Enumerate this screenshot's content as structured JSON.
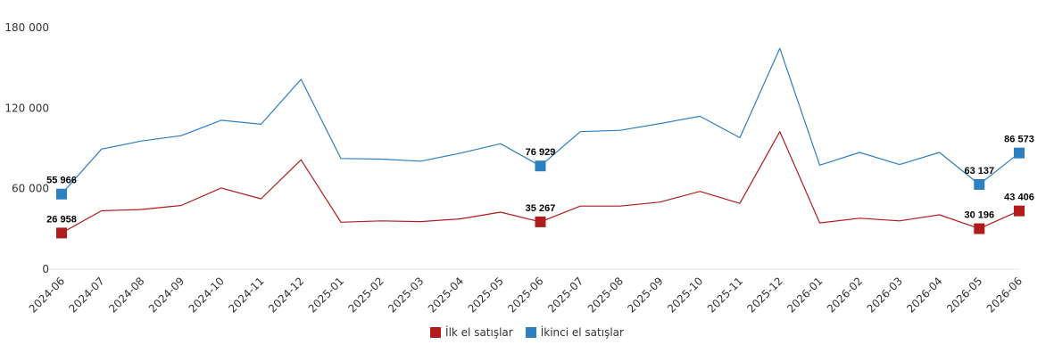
{
  "chart_data": {
    "type": "line",
    "categories": [
      "2024-06",
      "2024-07",
      "2024-08",
      "2024-09",
      "2024-10",
      "2024-11",
      "2024-12",
      "2025-01",
      "2025-02",
      "2025-03",
      "2025-04",
      "2025-05",
      "2025-06",
      "2025-07",
      "2025-08",
      "2025-09",
      "2025-10",
      "2025-11",
      "2025-12",
      "2026-01",
      "2026-02",
      "2026-03",
      "2026-04",
      "2026-05",
      "2026-06"
    ],
    "series": [
      {
        "name": "İlk el satışlar",
        "color": "#b01c1c",
        "values": [
          26958,
          43500,
          44500,
          47500,
          60500,
          52500,
          81500,
          35000,
          36000,
          35500,
          37500,
          42500,
          35267,
          47000,
          47000,
          50000,
          58000,
          49000,
          102500,
          34500,
          38000,
          36000,
          40500,
          30196,
          43406
        ]
      },
      {
        "name": "İkinci el satışlar",
        "color": "#2e7fc2",
        "values": [
          55966,
          89500,
          95500,
          99500,
          111000,
          108000,
          141500,
          82500,
          82000,
          80500,
          86500,
          93500,
          76929,
          102500,
          103500,
          108500,
          114000,
          98000,
          164500,
          77500,
          87000,
          78000,
          87000,
          63137,
          86573
        ]
      }
    ],
    "data_labels": [
      {
        "series": 0,
        "index": 0,
        "text": "26 958"
      },
      {
        "series": 0,
        "index": 12,
        "text": "35 267"
      },
      {
        "series": 0,
        "index": 23,
        "text": "30 196"
      },
      {
        "series": 0,
        "index": 24,
        "text": "43 406"
      },
      {
        "series": 1,
        "index": 0,
        "text": "55 966"
      },
      {
        "series": 1,
        "index": 12,
        "text": "76 929"
      },
      {
        "series": 1,
        "index": 23,
        "text": "63 137"
      },
      {
        "series": 1,
        "index": 24,
        "text": "86 573"
      }
    ],
    "y_ticks": [
      0,
      60000,
      120000,
      180000
    ],
    "y_tick_labels": [
      "0",
      "60 000",
      "120 000",
      "180 000"
    ],
    "ylim": [
      0,
      180000
    ],
    "grid": false,
    "legend_position": "bottom-center"
  }
}
